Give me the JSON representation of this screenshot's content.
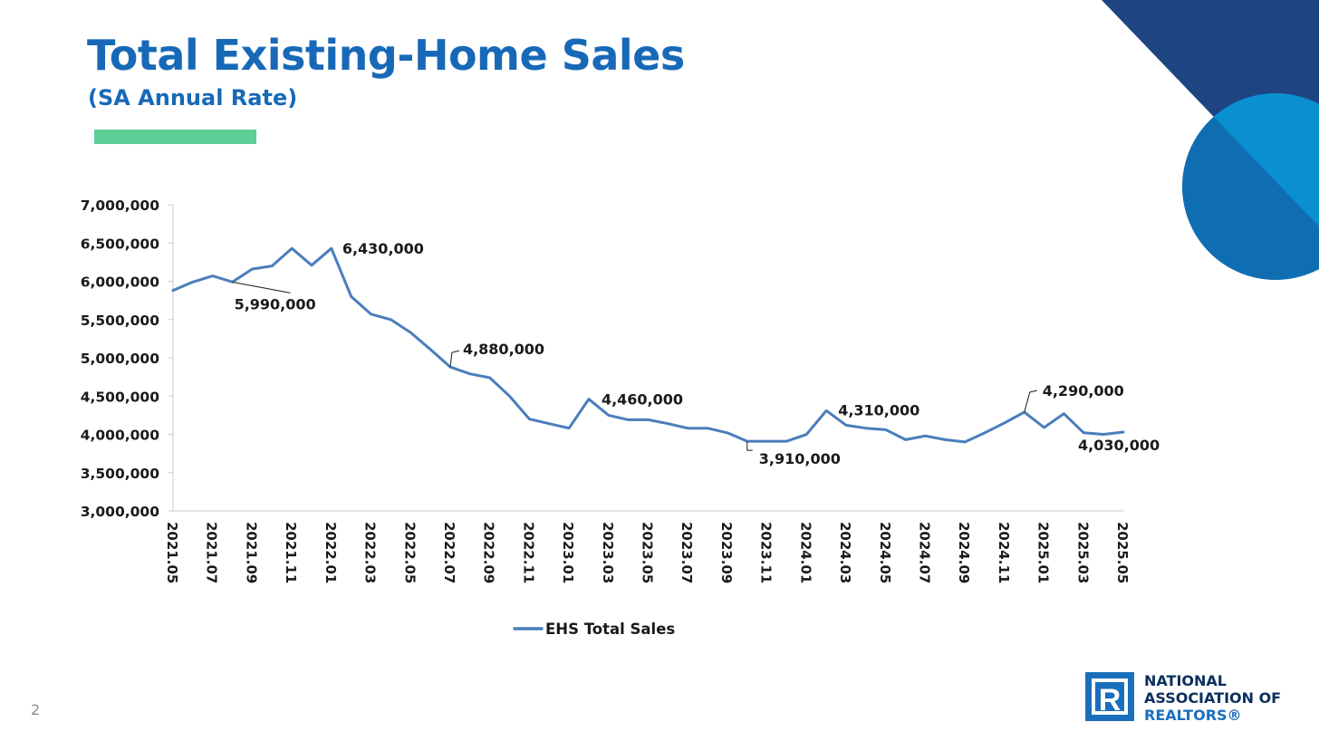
{
  "slide": {
    "title": "Total Existing-Home Sales",
    "subtitle": "(SA Annual Rate)",
    "page_number": "2",
    "accent_color": "#5ccf96",
    "title_color": "#1769b8"
  },
  "logo": {
    "line1": "NATIONAL",
    "line2": "ASSOCIATION OF",
    "line3": "REALTORS®",
    "mark": "R"
  },
  "chart_data": {
    "type": "line",
    "title": "",
    "xlabel": "",
    "ylabel": "",
    "ylim": [
      3000000,
      7000000
    ],
    "y_ticks": [
      3000000,
      3500000,
      4000000,
      4500000,
      5000000,
      5500000,
      6000000,
      6500000,
      7000000
    ],
    "y_tick_labels": [
      "3,000,000",
      "3,500,000",
      "4,000,000",
      "4,500,000",
      "5,000,000",
      "5,500,000",
      "6,000,000",
      "6,500,000",
      "7,000,000"
    ],
    "x": [
      "2021.05",
      "2021.06",
      "2021.07",
      "2021.08",
      "2021.09",
      "2021.10",
      "2021.11",
      "2021.12",
      "2022.01",
      "2022.02",
      "2022.03",
      "2022.04",
      "2022.05",
      "2022.06",
      "2022.07",
      "2022.08",
      "2022.09",
      "2022.10",
      "2022.11",
      "2022.12",
      "2023.01",
      "2023.02",
      "2023.03",
      "2023.04",
      "2023.05",
      "2023.06",
      "2023.07",
      "2023.08",
      "2023.09",
      "2023.10",
      "2023.11",
      "2023.12",
      "2024.01",
      "2024.02",
      "2024.03",
      "2024.04",
      "2024.05",
      "2024.06",
      "2024.07",
      "2024.08",
      "2024.09",
      "2024.10",
      "2024.11",
      "2024.12",
      "2025.01",
      "2025.02",
      "2025.03",
      "2025.04",
      "2025.05"
    ],
    "x_tick_labels": [
      "2021.05",
      "2021.07",
      "2021.09",
      "2021.11",
      "2022.01",
      "2022.03",
      "2022.05",
      "2022.07",
      "2022.09",
      "2022.11",
      "2023.01",
      "2023.03",
      "2023.05",
      "2023.07",
      "2023.09",
      "2023.11",
      "2024.01",
      "2024.03",
      "2024.05",
      "2024.07",
      "2024.09",
      "2024.11",
      "2025.01",
      "2025.03",
      "2025.05"
    ],
    "series": [
      {
        "name": "EHS Total Sales",
        "color": "#4a7ebb",
        "values": [
          5880000,
          5990000,
          6070000,
          5990000,
          6160000,
          6200000,
          6430000,
          6210000,
          6430000,
          5800000,
          5570000,
          5500000,
          5330000,
          5110000,
          4880000,
          4790000,
          4740000,
          4500000,
          4200000,
          4140000,
          4080000,
          4460000,
          4250000,
          4190000,
          4190000,
          4140000,
          4080000,
          4080000,
          4020000,
          3910000,
          3910000,
          3910000,
          4000000,
          4310000,
          4120000,
          4080000,
          4060000,
          3930000,
          3980000,
          3930000,
          3900000,
          4020000,
          4150000,
          4290000,
          4090000,
          4270000,
          4020000,
          4000000,
          4030000
        ]
      }
    ],
    "annotations": [
      {
        "index": 3,
        "text": "5,990,000",
        "placement": "below-right-leader"
      },
      {
        "index": 8,
        "text": "6,430,000",
        "placement": "right"
      },
      {
        "index": 14,
        "text": "4,880,000",
        "placement": "above-right-leader"
      },
      {
        "index": 21,
        "text": "4,460,000",
        "placement": "right"
      },
      {
        "index": 29,
        "text": "3,910,000",
        "placement": "below-right-leader"
      },
      {
        "index": 33,
        "text": "4,310,000",
        "placement": "right"
      },
      {
        "index": 43,
        "text": "4,290,000",
        "placement": "above-right-leader"
      },
      {
        "index": 48,
        "text": "4,030,000",
        "placement": "below"
      }
    ],
    "legend": {
      "position": "bottom",
      "label": "EHS Total Sales"
    },
    "grid": false
  }
}
